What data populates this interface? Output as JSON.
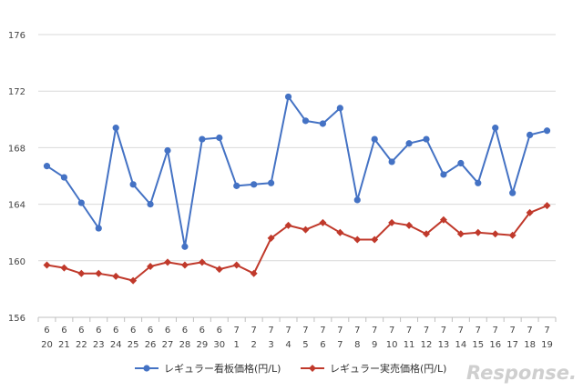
{
  "chart_data": {
    "type": "line",
    "categories": [
      {
        "month": "6",
        "day": "20"
      },
      {
        "month": "6",
        "day": "21"
      },
      {
        "month": "6",
        "day": "22"
      },
      {
        "month": "6",
        "day": "23"
      },
      {
        "month": "6",
        "day": "24"
      },
      {
        "month": "6",
        "day": "25"
      },
      {
        "month": "6",
        "day": "26"
      },
      {
        "month": "6",
        "day": "27"
      },
      {
        "month": "6",
        "day": "28"
      },
      {
        "month": "6",
        "day": "29"
      },
      {
        "month": "6",
        "day": "30"
      },
      {
        "month": "7",
        "day": "1"
      },
      {
        "month": "7",
        "day": "2"
      },
      {
        "month": "7",
        "day": "3"
      },
      {
        "month": "7",
        "day": "4"
      },
      {
        "month": "7",
        "day": "5"
      },
      {
        "month": "7",
        "day": "6"
      },
      {
        "month": "7",
        "day": "7"
      },
      {
        "month": "7",
        "day": "8"
      },
      {
        "month": "7",
        "day": "9"
      },
      {
        "month": "7",
        "day": "10"
      },
      {
        "month": "7",
        "day": "11"
      },
      {
        "month": "7",
        "day": "12"
      },
      {
        "month": "7",
        "day": "13"
      },
      {
        "month": "7",
        "day": "14"
      },
      {
        "month": "7",
        "day": "15"
      },
      {
        "month": "7",
        "day": "16"
      },
      {
        "month": "7",
        "day": "17"
      },
      {
        "month": "7",
        "day": "18"
      },
      {
        "month": "7",
        "day": "19"
      }
    ],
    "series": [
      {
        "name": "レギュラー看板価格(円/L)",
        "color": "#4472c4",
        "marker": "circle",
        "values": [
          166.7,
          165.9,
          164.1,
          162.3,
          169.4,
          165.4,
          164.0,
          167.8,
          161.0,
          168.6,
          168.7,
          165.3,
          165.4,
          165.5,
          171.6,
          169.9,
          169.7,
          170.8,
          164.3,
          168.6,
          167.0,
          168.3,
          168.6,
          166.1,
          166.9,
          165.5,
          169.4,
          164.8,
          168.9,
          169.2
        ]
      },
      {
        "name": "レギュラー実売価格(円/L)",
        "color": "#c0392b",
        "marker": "diamond",
        "values": [
          159.7,
          159.5,
          159.1,
          159.1,
          158.9,
          158.6,
          159.6,
          159.9,
          159.7,
          159.9,
          159.4,
          159.7,
          159.1,
          161.6,
          162.5,
          162.2,
          162.7,
          162.0,
          161.5,
          161.5,
          162.7,
          162.5,
          161.9,
          162.9,
          161.9,
          162.0,
          161.9,
          161.8,
          163.4,
          163.9
        ]
      }
    ],
    "yticks": [
      156,
      160,
      164,
      168,
      172,
      176
    ],
    "ylim": [
      156,
      176
    ],
    "grid": true,
    "legend_position": "bottom-center",
    "title": "",
    "xlabel": "",
    "ylabel": ""
  },
  "watermark": "Response."
}
